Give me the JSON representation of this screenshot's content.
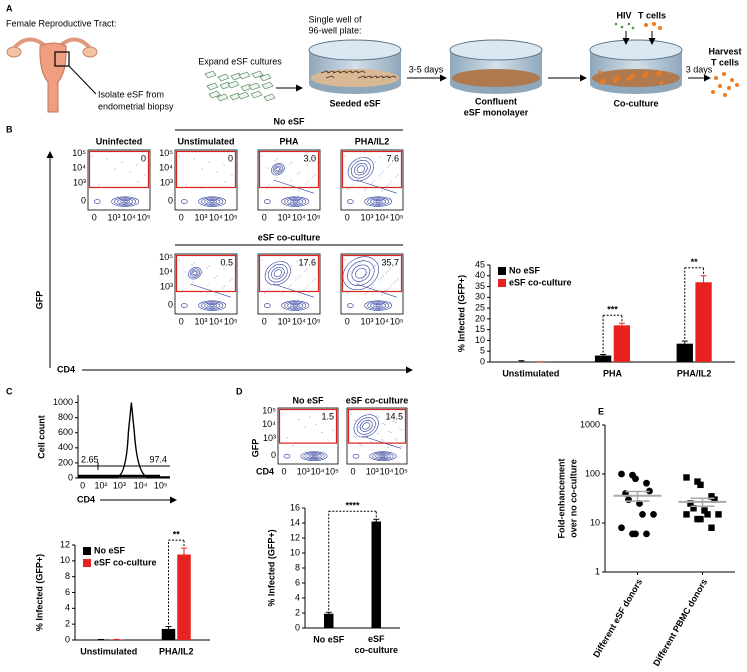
{
  "panel_a": {
    "label": "A",
    "title": "Female Reproductive Tract:",
    "isolate": [
      "Isolate eSF from",
      "endometrial biopsy"
    ],
    "expand": "Expand eSF cultures",
    "well": [
      "Single well of",
      "96-well plate:"
    ],
    "step1": "3-5 days",
    "seeded": "Seeded eSF",
    "confluent": [
      "Confluent",
      "eSF monolayer"
    ],
    "hiv": "HIV",
    "tcells": "T cells",
    "coculture": "Co-culture",
    "step2": "3 days",
    "harvest": [
      "Harvest",
      "T cells"
    ]
  },
  "panel_b_flow": {
    "label": "B",
    "group_no_esf": "No eSF",
    "group_esf": "eSF co-culture",
    "uninfected": "Uninfected",
    "columns": [
      "Unstimulated",
      "PHA",
      "PHA/IL2"
    ],
    "uninfected_gate": "0",
    "no_esf_gates": [
      "0",
      "3.0",
      "7.6"
    ],
    "esf_gates": [
      "0.5",
      "17.6",
      "35.7"
    ],
    "y_axis": "GFP",
    "x_axis": "CD4",
    "axis_ticks": [
      "0",
      "10³",
      "10⁴",
      "10⁵"
    ]
  },
  "panel_c_hist": {
    "label": "C",
    "y_axis": "Cell count",
    "x_axis": "CD4",
    "ylim": [
      0,
      1100
    ],
    "yticks": [
      0,
      200,
      400,
      600,
      800,
      1000
    ],
    "x_ticks": [
      "0",
      "10²",
      "10³",
      "10⁴",
      "10⁵"
    ],
    "gates": [
      "2.65",
      "97.4"
    ]
  },
  "panel_d_flow": {
    "label": "D",
    "columns": [
      "No eSF",
      "eSF co-culture"
    ],
    "gates": [
      "1.5",
      "14.5"
    ],
    "y_axis": "GFP",
    "x_axis": "CD4",
    "axis_ticks": [
      "0",
      "10³",
      "10⁴",
      "10⁵"
    ]
  },
  "panel_e_label": "E",
  "chart_data": [
    {
      "type": "bar",
      "ylabel": "% Infected (GFP+)",
      "categories": [
        "Unstimulated",
        "PHA",
        "PHA/IL2"
      ],
      "series": [
        {
          "name": "No eSF",
          "color": "#000000",
          "values": [
            0.1,
            3,
            8.5
          ],
          "errors": [
            0.5,
            0.5,
            1.2
          ]
        },
        {
          "name": "eSF co-culture",
          "color": "#e8231f",
          "values": [
            0.05,
            17,
            37
          ],
          "errors": [
            0.05,
            1,
            3
          ]
        }
      ],
      "ylim": [
        0,
        45
      ],
      "yticks": [
        0,
        5,
        10,
        15,
        20,
        25,
        30,
        35,
        40,
        45
      ],
      "legend": "upper left",
      "significance": [
        null,
        "***",
        "**"
      ]
    },
    {
      "type": "bar",
      "ylabel": "% Infected (GFP+)",
      "categories": [
        "Unstimulated",
        "PHA/IL2"
      ],
      "series": [
        {
          "name": "No eSF",
          "color": "#000000",
          "values": [
            0.05,
            1.4
          ],
          "errors": [
            0.02,
            0.3
          ]
        },
        {
          "name": "eSF co-culture",
          "color": "#e8231f",
          "values": [
            0.05,
            10.8
          ],
          "errors": [
            0.02,
            0.8
          ]
        }
      ],
      "ylim": [
        0,
        12
      ],
      "yticks": [
        0,
        2,
        4,
        6,
        8,
        10,
        12
      ],
      "legend": "upper left",
      "significance": [
        null,
        "**"
      ]
    },
    {
      "type": "bar",
      "ylabel": "% Infected (GFP+)",
      "categories": [
        "No eSF",
        "eSF co-culture"
      ],
      "values": [
        1.9,
        14.2
      ],
      "errors": [
        0.2,
        0.3
      ],
      "color": "#000000",
      "ylim": [
        0,
        16
      ],
      "yticks": [
        0,
        2,
        4,
        6,
        8,
        10,
        12,
        14,
        16
      ],
      "significance": "****"
    },
    {
      "type": "strip",
      "ylabel": [
        "Fold-enhancement",
        "over no co-culture"
      ],
      "categories": [
        "Different eSF donors",
        "Different PBMC donors"
      ],
      "log_y": true,
      "ylim": [
        1,
        1000
      ],
      "yticks": [
        1,
        10,
        100,
        1000
      ],
      "color": "#000000",
      "mean_color": "#a8a8a8",
      "groups": [
        {
          "marker": "circle",
          "values": [
            100,
            95,
            80,
            65,
            45,
            40,
            30,
            25,
            15,
            15,
            8,
            6,
            6,
            6
          ],
          "mean": 36,
          "sem": 8
        },
        {
          "marker": "square",
          "values": [
            85,
            70,
            60,
            35,
            30,
            25,
            20,
            18,
            15,
            15,
            15,
            12,
            12,
            8
          ],
          "mean": 27,
          "sem": 5
        }
      ]
    }
  ]
}
